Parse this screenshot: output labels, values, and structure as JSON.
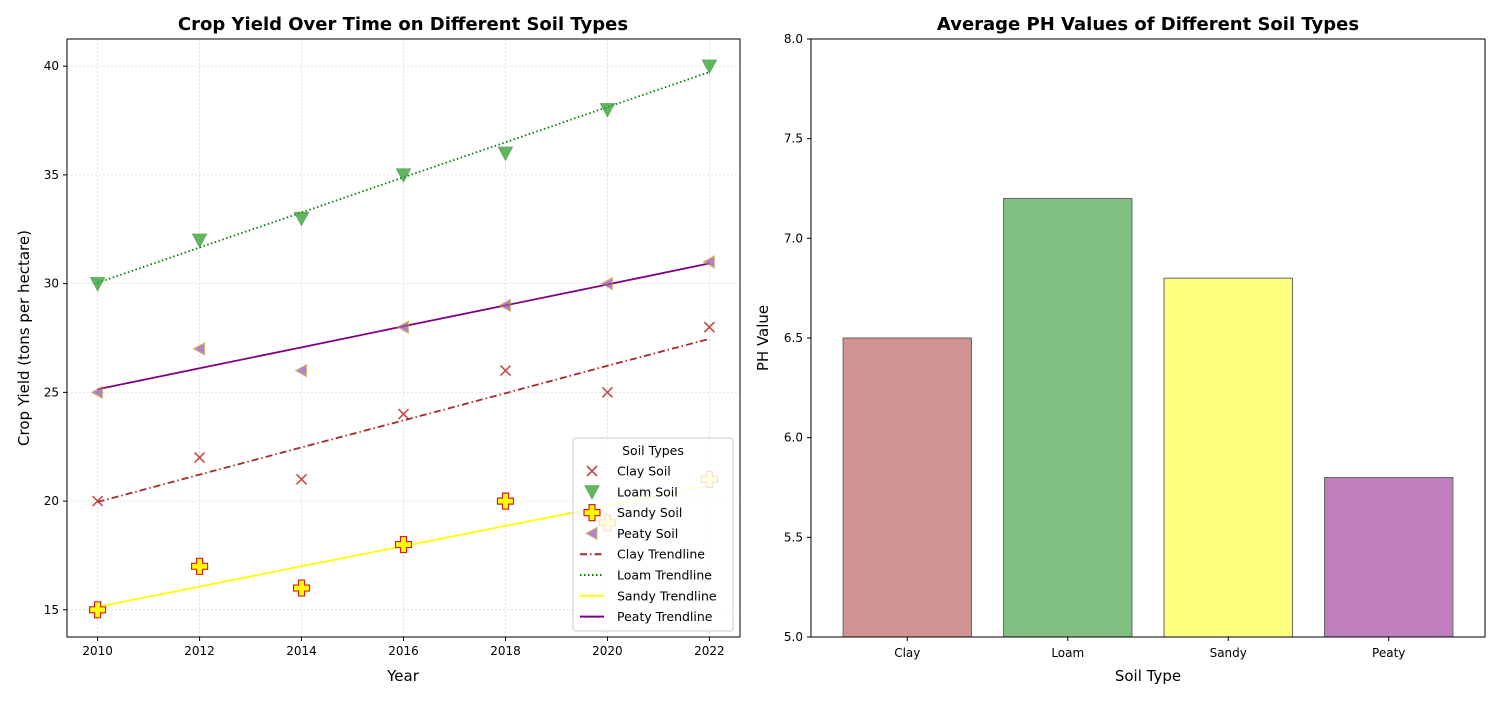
{
  "chart_data": [
    {
      "type": "scatter",
      "title": "Crop Yield Over Time on Different Soil Types",
      "xlabel": "Year",
      "ylabel": "Crop Yield (tons per hectare)",
      "x": [
        2010,
        2012,
        2014,
        2016,
        2018,
        2020,
        2022
      ],
      "xticks": [
        2010,
        2012,
        2014,
        2016,
        2018,
        2020,
        2022
      ],
      "yticks": [
        15,
        20,
        25,
        30,
        35,
        40
      ],
      "xlim": [
        2009.4,
        2022.6
      ],
      "ylim": [
        13.75,
        41.25
      ],
      "grid": true,
      "legend": {
        "title": "Soil Types",
        "placement": "lower-right",
        "entries": [
          "Clay Soil",
          "Loam Soil",
          "Sandy Soil",
          "Peaty Soil",
          "Clay Trendline",
          "Loam Trendline",
          "Sandy Trendline",
          "Peaty Trendline"
        ]
      },
      "series": [
        {
          "name": "Clay Soil",
          "kind": "scatter",
          "marker": "x",
          "color": "#b22222",
          "values": [
            20,
            22,
            21,
            24,
            26,
            25,
            28
          ]
        },
        {
          "name": "Loam Soil",
          "kind": "scatter",
          "marker": "triangle-down",
          "color": "#2ca02c",
          "edge": "#2e8b2e",
          "values": [
            30,
            32,
            33,
            35,
            36,
            38,
            40
          ]
        },
        {
          "name": "Sandy Soil",
          "kind": "scatter",
          "marker": "plus-filled",
          "color": "#ffff00",
          "edge": "#d62020",
          "values": [
            15,
            17,
            16,
            18,
            20,
            19,
            21
          ]
        },
        {
          "name": "Peaty Soil",
          "kind": "scatter",
          "marker": "triangle-left",
          "color": "#9b59b6",
          "edge": "#c8a040",
          "values": [
            25,
            27,
            26,
            28,
            29,
            30,
            31
          ]
        },
        {
          "name": "Clay Trendline",
          "kind": "line",
          "style": "dashdot",
          "color": "#a52a2a",
          "values": [
            19.96,
            21.22,
            22.47,
            23.71,
            24.96,
            26.22,
            27.46
          ]
        },
        {
          "name": "Loam Trendline",
          "kind": "line",
          "style": "dotted",
          "color": "#008000",
          "values": [
            30.04,
            31.66,
            33.27,
            34.89,
            36.5,
            38.12,
            39.73
          ]
        },
        {
          "name": "Sandy Trendline",
          "kind": "line",
          "style": "solid",
          "color": "#ffff00",
          "values": [
            15.14,
            16.07,
            17.0,
            17.93,
            18.86,
            19.79,
            20.71
          ]
        },
        {
          "name": "Peaty Trendline",
          "kind": "line",
          "style": "solid",
          "color": "#800080",
          "values": [
            25.14,
            26.11,
            27.07,
            28.04,
            29.0,
            29.96,
            30.93
          ]
        }
      ]
    },
    {
      "type": "bar",
      "title": "Average PH Values of Different Soil Types",
      "xlabel": "Soil Type",
      "ylabel": "PH Value",
      "categories": [
        "Clay",
        "Loam",
        "Sandy",
        "Peaty"
      ],
      "values": [
        6.5,
        7.2,
        6.8,
        5.8
      ],
      "colors": [
        "#d09392",
        "#80c080",
        "#ffff7f",
        "#bf7fbf"
      ],
      "edge": "#666666",
      "ylim": [
        5.0,
        8.0
      ],
      "yticks": [
        "5.0",
        "5.5",
        "6.0",
        "6.5",
        "7.0",
        "7.5",
        "8.0"
      ],
      "grid": false
    }
  ]
}
